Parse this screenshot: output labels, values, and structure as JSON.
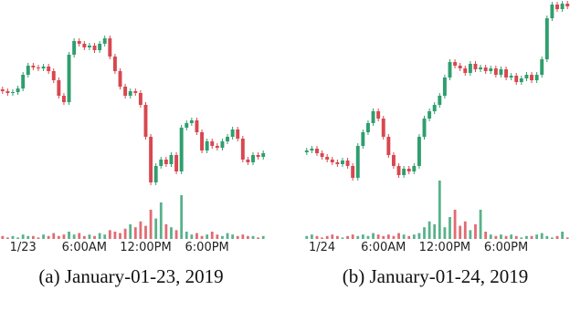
{
  "chart_data": [
    {
      "type": "candlestick",
      "caption": "(a) January-01-23, 2019",
      "categories": [
        null,
        null,
        null,
        null,
        "1/23",
        null,
        null,
        null,
        null,
        null,
        null,
        null,
        null,
        null,
        null,
        null,
        "6:00AM",
        null,
        null,
        null,
        null,
        null,
        null,
        null,
        null,
        null,
        null,
        null,
        "12:00PM",
        null,
        null,
        null,
        null,
        null,
        null,
        null,
        null,
        null,
        null,
        null,
        "6:00PM",
        null,
        null,
        null,
        null,
        null,
        null,
        null,
        null,
        null,
        null,
        null
      ],
      "open": [
        202,
        200,
        198,
        199,
        203,
        218,
        228,
        226,
        225,
        227,
        222,
        212,
        195,
        188,
        240,
        255,
        252,
        248,
        250,
        245,
        252,
        258,
        238,
        222,
        205,
        195,
        200,
        198,
        185,
        150,
        100,
        118,
        125,
        120,
        130,
        112,
        160,
        165,
        168,
        155,
        135,
        145,
        140,
        138,
        145,
        150,
        158,
        148,
        125,
        122,
        130,
        128
      ],
      "high": [
        205,
        203,
        202,
        206,
        221,
        231,
        231,
        229,
        230,
        230,
        225,
        215,
        198,
        243,
        258,
        258,
        255,
        253,
        253,
        255,
        261,
        261,
        241,
        225,
        208,
        203,
        203,
        201,
        188,
        153,
        121,
        128,
        128,
        133,
        133,
        163,
        168,
        171,
        171,
        158,
        148,
        148,
        143,
        148,
        153,
        161,
        161,
        151,
        128,
        133,
        133,
        135
      ],
      "low": [
        197,
        195,
        195,
        196,
        200,
        215,
        223,
        222,
        222,
        219,
        209,
        192,
        185,
        185,
        237,
        249,
        245,
        245,
        242,
        242,
        249,
        235,
        219,
        202,
        192,
        192,
        195,
        182,
        147,
        97,
        97,
        115,
        117,
        117,
        109,
        109,
        157,
        162,
        152,
        132,
        132,
        137,
        135,
        135,
        142,
        147,
        145,
        122,
        119,
        119,
        125,
        125
      ],
      "close": [
        200,
        198,
        199,
        203,
        218,
        228,
        226,
        225,
        227,
        222,
        212,
        195,
        188,
        240,
        255,
        252,
        248,
        250,
        245,
        252,
        258,
        238,
        222,
        205,
        195,
        200,
        198,
        185,
        150,
        100,
        118,
        125,
        120,
        130,
        112,
        160,
        165,
        168,
        155,
        135,
        145,
        140,
        138,
        145,
        150,
        158,
        148,
        125,
        122,
        130,
        128,
        132
      ],
      "volume": [
        2,
        1,
        2,
        1,
        3,
        2,
        2,
        1,
        3,
        2,
        4,
        2,
        3,
        5,
        3,
        4,
        2,
        3,
        2,
        4,
        3,
        6,
        5,
        4,
        7,
        10,
        8,
        12,
        9,
        20,
        14,
        25,
        10,
        8,
        6,
        30,
        5,
        3,
        4,
        2,
        3,
        5,
        3,
        2,
        4,
        3,
        2,
        3,
        2,
        2,
        1,
        2
      ],
      "ylim": [
        85,
        300
      ],
      "volume_lim": [
        0,
        50
      ],
      "up_color": "#2f9e6e",
      "down_color": "#d8474f"
    },
    {
      "type": "candlestick",
      "caption": "(b) January-01-24, 2019",
      "categories": [
        null,
        null,
        null,
        "1/24",
        null,
        null,
        null,
        null,
        null,
        null,
        null,
        null,
        null,
        null,
        null,
        "6:00AM",
        null,
        null,
        null,
        null,
        null,
        null,
        null,
        null,
        null,
        null,
        null,
        "12:00PM",
        null,
        null,
        null,
        null,
        null,
        null,
        null,
        null,
        null,
        null,
        null,
        "6:00PM",
        null,
        null,
        null,
        null,
        null,
        null,
        null,
        null,
        null,
        null,
        null,
        null
      ],
      "open": [
        133,
        135,
        137,
        132,
        128,
        125,
        122,
        120,
        124,
        118,
        105,
        140,
        155,
        165,
        178,
        170,
        150,
        130,
        118,
        108,
        115,
        112,
        118,
        150,
        170,
        178,
        185,
        195,
        215,
        232,
        228,
        225,
        220,
        230,
        224,
        226,
        222,
        225,
        218,
        224,
        215,
        217,
        210,
        214,
        218,
        212,
        218,
        235,
        280,
        295,
        290,
        296
      ],
      "high": [
        138,
        140,
        140,
        135,
        131,
        128,
        125,
        127,
        127,
        121,
        143,
        158,
        168,
        181,
        181,
        173,
        153,
        133,
        121,
        118,
        118,
        121,
        153,
        173,
        181,
        188,
        198,
        218,
        235,
        235,
        231,
        228,
        233,
        233,
        229,
        229,
        228,
        228,
        227,
        227,
        220,
        220,
        217,
        221,
        221,
        221,
        238,
        283,
        298,
        298,
        299,
        299
      ],
      "low": [
        130,
        132,
        129,
        125,
        122,
        119,
        117,
        117,
        115,
        102,
        102,
        137,
        152,
        162,
        167,
        147,
        127,
        115,
        105,
        105,
        109,
        109,
        115,
        147,
        167,
        175,
        182,
        192,
        212,
        225,
        222,
        217,
        217,
        221,
        221,
        219,
        219,
        215,
        215,
        212,
        212,
        207,
        207,
        211,
        209,
        209,
        215,
        232,
        277,
        287,
        287,
        290
      ],
      "close": [
        135,
        137,
        132,
        128,
        125,
        122,
        120,
        124,
        118,
        105,
        140,
        155,
        165,
        178,
        170,
        150,
        130,
        118,
        108,
        115,
        112,
        118,
        150,
        170,
        178,
        185,
        195,
        215,
        232,
        228,
        225,
        220,
        230,
        224,
        226,
        222,
        225,
        218,
        224,
        215,
        217,
        210,
        214,
        218,
        212,
        218,
        235,
        280,
        295,
        290,
        296,
        293
      ],
      "volume": [
        2,
        3,
        2,
        1,
        2,
        3,
        2,
        1,
        2,
        3,
        2,
        3,
        2,
        4,
        3,
        2,
        3,
        2,
        4,
        3,
        2,
        3,
        4,
        8,
        12,
        10,
        40,
        8,
        15,
        20,
        9,
        12,
        6,
        10,
        20,
        5,
        3,
        2,
        3,
        2,
        3,
        2,
        1,
        2,
        2,
        3,
        4,
        2,
        1,
        2,
        5,
        1
      ],
      "ylim": [
        85,
        300
      ],
      "volume_lim": [
        0,
        50
      ],
      "up_color": "#2f9e6e",
      "down_color": "#d8474f"
    }
  ]
}
